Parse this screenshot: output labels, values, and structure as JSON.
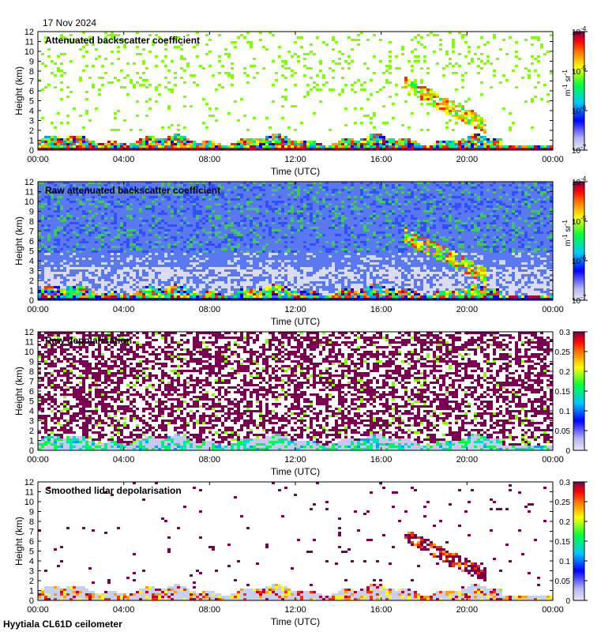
{
  "date_label": "17 Nov 2024",
  "footer_label": "Hyytiala CL61D ceilometer",
  "chart_data": [
    {
      "type": "heatmap",
      "title": "Attenuated backscatter coefficient",
      "xlabel": "Time (UTC)",
      "ylabel": "Height (km)",
      "x_ticks": [
        "00:00",
        "04:00",
        "08:00",
        "12:00",
        "16:00",
        "20:00",
        "00:00"
      ],
      "y_ticks": [
        "0",
        "1",
        "2",
        "3",
        "4",
        "5",
        "6",
        "7",
        "8",
        "9",
        "10",
        "11",
        "12"
      ],
      "ylim": [
        0,
        12
      ],
      "colorbar": {
        "scale": "log",
        "range": [
          1e-07,
          0.0001
        ],
        "tick_bases": [
          "10",
          "10",
          "10",
          "10"
        ],
        "tick_exps": [
          "-7",
          "-6",
          "-5",
          "-4"
        ],
        "unit": "m",
        "unit_exp": "-1",
        "unit2": "sr",
        "unit2_exp": "-1"
      },
      "features": [
        {
          "name": "boundary layer",
          "time_range": [
            "00:00",
            "21:30"
          ],
          "height_range": [
            0,
            1.8
          ]
        },
        {
          "name": "descending cloud",
          "time_range": [
            "17:00",
            "20:30"
          ],
          "height_range": [
            2.5,
            7.0
          ]
        }
      ]
    },
    {
      "type": "heatmap",
      "title": "Raw attenuated backscatter coefficient",
      "xlabel": "Time (UTC)",
      "ylabel": "Height (km)",
      "x_ticks": [
        "00:00",
        "04:00",
        "08:00",
        "12:00",
        "16:00",
        "20:00",
        "00:00"
      ],
      "y_ticks": [
        "0",
        "1",
        "2",
        "3",
        "4",
        "5",
        "6",
        "7",
        "8",
        "9",
        "10",
        "11",
        "12"
      ],
      "ylim": [
        0,
        12
      ],
      "colorbar": {
        "scale": "log",
        "range": [
          1e-07,
          0.0001
        ],
        "tick_bases": [
          "10",
          "10",
          "10",
          "10"
        ],
        "tick_exps": [
          "-7",
          "-6",
          "-5",
          "-4"
        ],
        "unit": "m",
        "unit_exp": "-1",
        "unit2": "sr",
        "unit2_exp": "-1"
      }
    },
    {
      "type": "heatmap",
      "title": "Raw depolarisation",
      "xlabel": "Time (UTC)",
      "ylabel": "Height (km)",
      "x_ticks": [
        "00:00",
        "04:00",
        "08:00",
        "12:00",
        "16:00",
        "20:00",
        "00:00"
      ],
      "y_ticks": [
        "0",
        "1",
        "2",
        "3",
        "4",
        "5",
        "6",
        "7",
        "8",
        "9",
        "10",
        "11",
        "12"
      ],
      "ylim": [
        0,
        12
      ],
      "colorbar": {
        "scale": "linear",
        "range": [
          0,
          0.3
        ],
        "ticks": [
          "0",
          "0.05",
          "0.1",
          "0.15",
          "0.2",
          "0.25",
          "0.3"
        ]
      }
    },
    {
      "type": "heatmap",
      "title": "Smoothed lidar depolarisation",
      "xlabel": "Time (UTC)",
      "ylabel": "Height (km)",
      "x_ticks": [
        "00:00",
        "04:00",
        "08:00",
        "12:00",
        "16:00",
        "20:00",
        "00:00"
      ],
      "y_ticks": [
        "0",
        "1",
        "2",
        "3",
        "4",
        "5",
        "6",
        "7",
        "8",
        "9",
        "10",
        "11",
        "12"
      ],
      "ylim": [
        0,
        12
      ],
      "colorbar": {
        "scale": "linear",
        "range": [
          0,
          0.3
        ],
        "ticks": [
          "0",
          "0.05",
          "0.1",
          "0.15",
          "0.2",
          "0.25",
          "0.3"
        ]
      }
    }
  ]
}
